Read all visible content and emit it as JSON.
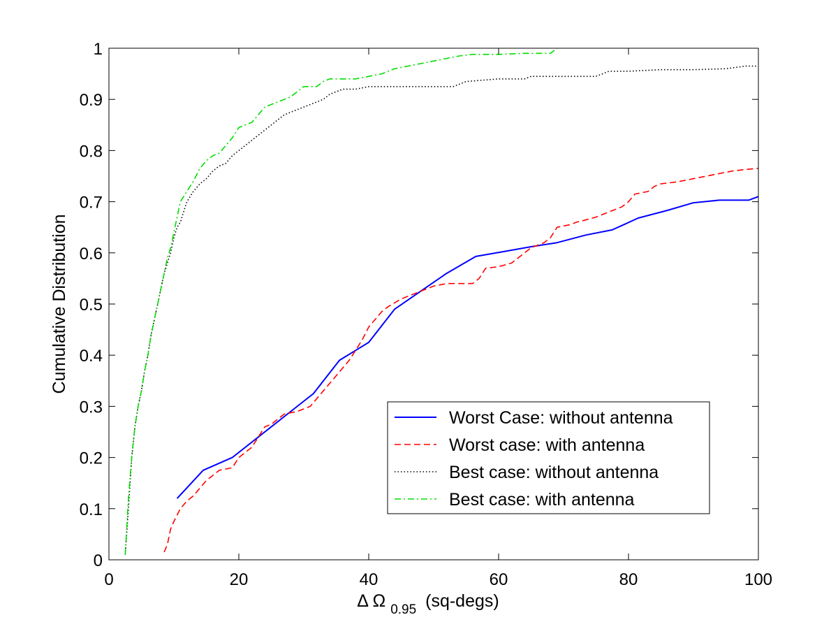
{
  "chart_data": {
    "type": "line",
    "title": "",
    "xlabel": {
      "symbol": "Δ Ω",
      "subscript": "0.95",
      "units": "(sq-degs)"
    },
    "ylabel": "Cumulative  Distribution",
    "xlim": [
      0,
      100
    ],
    "ylim": [
      0,
      1
    ],
    "xticks": [
      0,
      20,
      40,
      60,
      80,
      100
    ],
    "yticks": [
      0,
      0.1,
      0.2,
      0.3,
      0.4,
      0.5,
      0.6,
      0.7,
      0.8,
      0.9,
      1
    ],
    "xtick_labels": [
      "0",
      "20",
      "40",
      "60",
      "80",
      "100"
    ],
    "ytick_labels": [
      "0",
      "0.1",
      "0.2",
      "0.3",
      "0.4",
      "0.5",
      "0.6",
      "0.7",
      "0.8",
      "0.9",
      "1"
    ],
    "grid": false,
    "legend": {
      "placement": "lower-right",
      "entries": [
        "Worst Case: without antenna",
        "Worst case: with antenna",
        "Best case: without antenna",
        "Best case: with antenna"
      ]
    },
    "series": [
      {
        "name": "Worst Case: without antenna",
        "color": "#0000ff",
        "dash": "solid",
        "x": [
          10.5,
          14.5,
          19.0,
          23.0,
          27.0,
          31.5,
          35.5,
          40.0,
          44.0,
          48.0,
          52.0,
          56.5,
          61.0,
          65.0,
          69.0,
          73.5,
          77.5,
          81.5,
          86.0,
          90.0,
          94.0,
          98.5,
          100
        ],
        "y": [
          0.12,
          0.175,
          0.2,
          0.24,
          0.28,
          0.325,
          0.39,
          0.425,
          0.49,
          0.525,
          0.56,
          0.593,
          0.603,
          0.612,
          0.62,
          0.635,
          0.645,
          0.668,
          0.683,
          0.698,
          0.703,
          0.703,
          0.71
        ]
      },
      {
        "name": "Worst case: with antenna",
        "color": "#ff0000",
        "dash": "dashed",
        "x": [
          8.5,
          9.0,
          9.5,
          10.0,
          11.0,
          12.0,
          13.0,
          14.0,
          15.0,
          16.0,
          17.0,
          19.0,
          20.0,
          21.0,
          22.0,
          24.0,
          25.0,
          26.0,
          27.0,
          29.0,
          31.0,
          32.0,
          33.0,
          34.0,
          35.0,
          36.0,
          37.0,
          38.0,
          39.0,
          40.0,
          41.0,
          42.0,
          43.0,
          45.0,
          46.0,
          48.0,
          49.0,
          50.0,
          52.0,
          56.0,
          57.0,
          58.0,
          60.0,
          62.0,
          63.0,
          64.0,
          65.0,
          67.0,
          68.0,
          69.0,
          71.0,
          72.0,
          73.0,
          75.0,
          76.0,
          77.0,
          79.0,
          80.0,
          81.0,
          83.0,
          84.0,
          85.0,
          87.0,
          88.0,
          90.0,
          92.0,
          94.0,
          96.0,
          98.0,
          100.0
        ],
        "y": [
          0.015,
          0.03,
          0.06,
          0.075,
          0.1,
          0.115,
          0.125,
          0.14,
          0.155,
          0.165,
          0.175,
          0.18,
          0.2,
          0.21,
          0.22,
          0.26,
          0.265,
          0.275,
          0.285,
          0.29,
          0.3,
          0.315,
          0.33,
          0.345,
          0.36,
          0.375,
          0.39,
          0.41,
          0.43,
          0.455,
          0.47,
          0.485,
          0.495,
          0.51,
          0.515,
          0.525,
          0.53,
          0.535,
          0.54,
          0.54,
          0.55,
          0.57,
          0.573,
          0.58,
          0.59,
          0.6,
          0.61,
          0.62,
          0.63,
          0.65,
          0.655,
          0.66,
          0.663,
          0.67,
          0.675,
          0.68,
          0.69,
          0.7,
          0.715,
          0.72,
          0.73,
          0.735,
          0.738,
          0.74,
          0.745,
          0.75,
          0.755,
          0.76,
          0.763,
          0.765
        ]
      },
      {
        "name": "Best case: without antenna",
        "color": "#000000",
        "dash": "dotted",
        "x": [
          2.5,
          3.0,
          3.5,
          4.0,
          4.5,
          5.0,
          5.5,
          6.0,
          6.5,
          7.0,
          7.5,
          8.0,
          8.5,
          9.0,
          9.5,
          10.0,
          10.5,
          11.0,
          11.5,
          12.0,
          13.0,
          14.0,
          15.0,
          16.0,
          17.0,
          18.0,
          19.0,
          20.0,
          21.0,
          22.0,
          23.0,
          24.0,
          25.0,
          26.0,
          27.0,
          28.0,
          29.0,
          30.0,
          31.0,
          32.0,
          33.0,
          34.0,
          35.0,
          36.0,
          38.0,
          40.0,
          42.0,
          45.0,
          48.0,
          50.0,
          53.0,
          55.0,
          60.0,
          64.0,
          65.0,
          70.0,
          75.0,
          77.0,
          80.0,
          85.0,
          90.0,
          95.0,
          98.0,
          100.0
        ],
        "y": [
          0.01,
          0.1,
          0.2,
          0.26,
          0.3,
          0.33,
          0.37,
          0.4,
          0.44,
          0.47,
          0.5,
          0.53,
          0.56,
          0.58,
          0.6,
          0.63,
          0.65,
          0.66,
          0.68,
          0.7,
          0.72,
          0.735,
          0.745,
          0.76,
          0.77,
          0.775,
          0.79,
          0.8,
          0.81,
          0.82,
          0.83,
          0.84,
          0.85,
          0.86,
          0.87,
          0.875,
          0.88,
          0.885,
          0.89,
          0.895,
          0.9,
          0.91,
          0.915,
          0.92,
          0.92,
          0.925,
          0.925,
          0.925,
          0.925,
          0.925,
          0.925,
          0.935,
          0.94,
          0.94,
          0.945,
          0.945,
          0.945,
          0.955,
          0.955,
          0.958,
          0.958,
          0.96,
          0.965,
          0.965
        ]
      },
      {
        "name": "Best case: with antenna",
        "color": "#00dd00",
        "dash": "dashdot",
        "x": [
          2.5,
          3.0,
          3.5,
          4.0,
          4.5,
          5.0,
          5.5,
          6.0,
          6.5,
          7.0,
          7.5,
          8.0,
          8.5,
          9.0,
          9.5,
          10.0,
          10.5,
          11.0,
          12.0,
          13.0,
          14.0,
          15.0,
          16.0,
          17.0,
          18.0,
          19.0,
          20.0,
          21.0,
          22.0,
          23.0,
          24.0,
          25.0,
          26.0,
          27.0,
          28.0,
          29.0,
          30.0,
          32.0,
          33.0,
          34.0,
          36.0,
          38.0,
          40.0,
          42.0,
          43.0,
          44.0,
          46.0,
          48.0,
          50.0,
          52.0,
          54.0,
          56.0,
          60.0,
          64.0,
          65.0,
          68.0,
          69.0
        ],
        "y": [
          0.01,
          0.12,
          0.2,
          0.26,
          0.3,
          0.33,
          0.37,
          0.4,
          0.44,
          0.47,
          0.5,
          0.53,
          0.56,
          0.59,
          0.61,
          0.64,
          0.67,
          0.7,
          0.72,
          0.74,
          0.765,
          0.78,
          0.79,
          0.795,
          0.81,
          0.825,
          0.845,
          0.85,
          0.855,
          0.87,
          0.885,
          0.89,
          0.895,
          0.9,
          0.905,
          0.915,
          0.925,
          0.925,
          0.935,
          0.94,
          0.94,
          0.94,
          0.945,
          0.95,
          0.955,
          0.96,
          0.965,
          0.97,
          0.975,
          0.98,
          0.985,
          0.988,
          0.988,
          0.99,
          0.99,
          0.99,
          1.0
        ]
      }
    ]
  }
}
